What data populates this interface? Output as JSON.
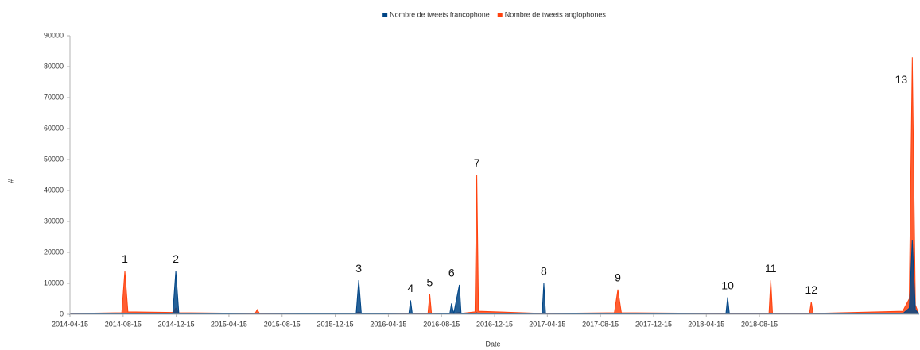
{
  "chart_data": {
    "type": "area",
    "x_label": "Date",
    "y_label": "#",
    "x": [
      "2014-04-15",
      "2014-08-12",
      "2014-08-19",
      "2014-08-26",
      "2014-12-07",
      "2014-12-14",
      "2014-12-21",
      "2015-06-14",
      "2015-06-19",
      "2015-06-24",
      "2016-02-01",
      "2016-02-07",
      "2016-02-13",
      "2016-06-01",
      "2016-06-05",
      "2016-06-09",
      "2016-07-15",
      "2016-07-19",
      "2016-07-23",
      "2016-09-03",
      "2016-09-07",
      "2016-09-12",
      "2016-09-25",
      "2016-09-29",
      "2016-10-31",
      "2016-11-04",
      "2016-11-08",
      "2017-04-03",
      "2017-04-07",
      "2017-04-11",
      "2017-09-16",
      "2017-09-24",
      "2017-10-02",
      "2018-05-30",
      "2018-06-03",
      "2018-06-07",
      "2018-09-06",
      "2018-09-10",
      "2018-09-14",
      "2018-12-08",
      "2018-12-12",
      "2018-12-16",
      "2019-07-10",
      "2019-07-25",
      "2019-08-01",
      "2019-08-08",
      "2019-08-15"
    ],
    "series": [
      {
        "name": "Nombre de tweets anglophones",
        "color": "#ff420e",
        "values": [
          300,
          500,
          14000,
          800,
          600,
          2000,
          500,
          300,
          1500,
          300,
          400,
          800,
          400,
          300,
          300,
          300,
          300,
          6500,
          300,
          300,
          500,
          300,
          600,
          300,
          800,
          45000,
          1000,
          300,
          500,
          300,
          500,
          8000,
          500,
          300,
          300,
          300,
          300,
          11000,
          300,
          300,
          4000,
          300,
          1000,
          5000,
          83000,
          3000,
          500
        ]
      },
      {
        "name": "Nombre de tweets francophone",
        "color": "#004586",
        "values": [
          100,
          150,
          300,
          150,
          200,
          14000,
          200,
          100,
          100,
          100,
          150,
          11000,
          150,
          100,
          4500,
          100,
          100,
          200,
          100,
          150,
          3500,
          200,
          9500,
          150,
          200,
          500,
          200,
          100,
          10000,
          100,
          150,
          300,
          150,
          100,
          5500,
          100,
          100,
          200,
          100,
          100,
          100,
          100,
          200,
          2000,
          24000,
          1500,
          300
        ]
      }
    ],
    "legend_order": [
      1,
      0
    ],
    "xlim": [
      "2014-04-15",
      "2019-08-15"
    ],
    "xticks": [
      "2014-04-15",
      "2014-08-15",
      "2014-12-15",
      "2015-04-15",
      "2015-08-15",
      "2015-12-15",
      "2016-04-15",
      "2016-08-15",
      "2016-12-15",
      "2017-04-15",
      "2017-08-15",
      "2017-12-15",
      "2018-04-15",
      "2018-08-15"
    ],
    "ylim": [
      0,
      90000
    ],
    "yticks": [
      0,
      10000,
      20000,
      30000,
      40000,
      50000,
      60000,
      70000,
      80000,
      90000
    ],
    "grid": false,
    "legend": "top",
    "annotations": [
      {
        "text": "1",
        "x": "2014-08-19",
        "y": 14000
      },
      {
        "text": "2",
        "x": "2014-12-14",
        "y": 14000
      },
      {
        "text": "3",
        "x": "2016-02-07",
        "y": 11000
      },
      {
        "text": "4",
        "x": "2016-06-05",
        "y": 4500
      },
      {
        "text": "5",
        "x": "2016-07-19",
        "y": 6500
      },
      {
        "text": "6",
        "x": "2016-09-07",
        "y": 9500
      },
      {
        "text": "7",
        "x": "2016-11-04",
        "y": 45000
      },
      {
        "text": "8",
        "x": "2017-04-07",
        "y": 10000
      },
      {
        "text": "9",
        "x": "2017-09-24",
        "y": 8000
      },
      {
        "text": "10",
        "x": "2018-06-03",
        "y": 5500
      },
      {
        "text": "11",
        "x": "2018-09-10",
        "y": 11000
      },
      {
        "text": "12",
        "x": "2018-12-12",
        "y": 4000
      },
      {
        "text": "13",
        "x": "2019-08-01",
        "y": 72000
      }
    ]
  }
}
